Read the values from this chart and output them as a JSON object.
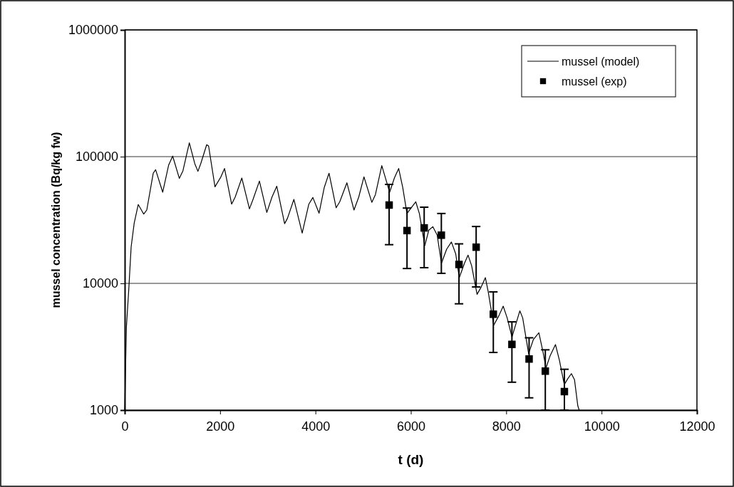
{
  "chart_data": {
    "type": "line",
    "xlabel": "t (d)",
    "ylabel": "mussel concentration (Bq/kg fw)",
    "xlim": [
      0,
      12000
    ],
    "xticks": [
      0,
      2000,
      4000,
      6000,
      8000,
      10000,
      12000
    ],
    "ylim": [
      1000,
      1000000
    ],
    "yticks": [
      1000,
      10000,
      100000,
      1000000
    ],
    "log": "y",
    "grid": "y",
    "legend": "top right",
    "series": [
      {
        "name": "mussel (model)",
        "color": "#000000",
        "marker": "none",
        "line_style": "solid",
        "x": [
          0,
          35,
          85,
          135,
          199,
          284,
          399,
          463,
          598,
          648,
          797,
          922,
          1006,
          1146,
          1221,
          1355,
          1470,
          1535,
          1594,
          1719,
          1759,
          1893,
          2018,
          2093,
          2242,
          2317,
          2456,
          2616,
          2691,
          2825,
          2980,
          3089,
          3189,
          3353,
          3413,
          3548,
          3722,
          3861,
          3946,
          4076,
          4185,
          4285,
          4434,
          4509,
          4659,
          4808,
          4908,
          5017,
          5182,
          5257,
          5391,
          5556,
          5655,
          5745,
          5830,
          5919,
          6104,
          6179,
          6293,
          6377,
          6462,
          6552,
          6642,
          6751,
          6851,
          6941,
          7016,
          7125,
          7200,
          7275,
          7389,
          7474,
          7563,
          7623,
          7738,
          7847,
          7937,
          8021,
          8121,
          8196,
          8286,
          8346,
          8470,
          8570,
          8685,
          8769,
          8834,
          8919,
          9033,
          9118,
          9218,
          9292,
          9367,
          9432,
          9502,
          9530
        ],
        "values": [
          1000,
          4490,
          8940,
          19400,
          29900,
          41900,
          35200,
          37900,
          74000,
          78900,
          52400,
          86000,
          101000,
          67300,
          77300,
          128500,
          87900,
          76600,
          87900,
          124200,
          121400,
          57800,
          69300,
          80600,
          42200,
          48000,
          67800,
          38700,
          46000,
          64100,
          36300,
          48000,
          58400,
          29600,
          32600,
          46000,
          24900,
          42200,
          47600,
          35800,
          57200,
          74000,
          39500,
          44000,
          62200,
          37900,
          48000,
          69300,
          43600,
          50100,
          84900,
          52400,
          67800,
          80600,
          57200,
          35600,
          44000,
          35600,
          19900,
          26300,
          28000,
          24100,
          14400,
          18600,
          21200,
          17100,
          11100,
          14400,
          16700,
          13800,
          8200,
          9330,
          11100,
          8570,
          4680,
          5560,
          6610,
          5330,
          3770,
          4680,
          6070,
          5330,
          2790,
          3610,
          4080,
          2910,
          2150,
          2670,
          3290,
          2450,
          1590,
          1770,
          1940,
          1740,
          1080,
          1000
        ]
      },
      {
        "name": "mussel (exp)",
        "type": "scatter",
        "color": "#000000",
        "marker": "square",
        "x": [
          5545,
          5920,
          6280,
          6640,
          7010,
          7370,
          7730,
          8120,
          8480,
          8820,
          9220
        ],
        "values": [
          41500,
          26100,
          27400,
          24000,
          14100,
          19300,
          5710,
          3300,
          2530,
          2030,
          1400
        ],
        "errors": [
          [
            20200,
            60400
          ],
          [
            13100,
            39300
          ],
          [
            13300,
            39900
          ],
          [
            12000,
            35600
          ],
          [
            6900,
            20500
          ],
          [
            9370,
            28100
          ],
          [
            2850,
            8570
          ],
          [
            1660,
            4970
          ],
          [
            1250,
            3720
          ],
          [
            1000,
            2990
          ],
          [
            1000,
            2100
          ]
        ]
      }
    ]
  }
}
